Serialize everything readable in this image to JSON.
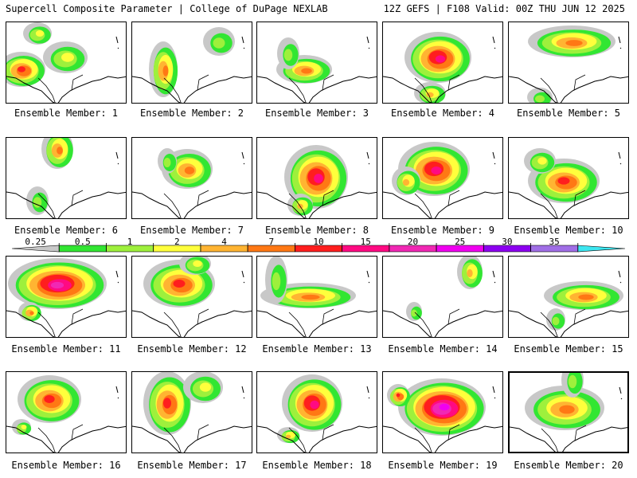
{
  "header": {
    "title_left": "Supercell Composite Parameter | College of DuPage NEXLAB",
    "title_right": "12Z GEFS | F108 Valid: 00Z THU JUN 12 2025"
  },
  "members": [
    {
      "label": "Ensemble Member: 1",
      "max": "7"
    },
    {
      "label": "Ensemble Member: 2",
      "max": "4"
    },
    {
      "label": "Ensemble Member: 3",
      "max": "4"
    },
    {
      "label": "Ensemble Member: 4",
      "max": "10"
    },
    {
      "label": "Ensemble Member: 5",
      "max": "4"
    },
    {
      "label": "Ensemble Member: 6",
      "max": "4"
    },
    {
      "label": "Ensemble Member: 7",
      "max": "4"
    },
    {
      "label": "Ensemble Member: 8",
      "max": "10"
    },
    {
      "label": "Ensemble Member: 9",
      "max": "10"
    },
    {
      "label": "Ensemble Member: 10",
      "max": "7"
    },
    {
      "label": "Ensemble Member: 11",
      "max": "15"
    },
    {
      "label": "Ensemble Member: 12",
      "max": "7"
    },
    {
      "label": "Ensemble Member: 13",
      "max": "4"
    },
    {
      "label": "Ensemble Member: 14",
      "max": "2"
    },
    {
      "label": "Ensemble Member: 15",
      "max": "4"
    },
    {
      "label": "Ensemble Member: 16",
      "max": "7"
    },
    {
      "label": "Ensemble Member: 17",
      "max": "7"
    },
    {
      "label": "Ensemble Member: 18",
      "max": "10"
    },
    {
      "label": "Ensemble Member: 19",
      "max": "20"
    },
    {
      "label": "Ensemble Member: 20",
      "max": "4"
    }
  ],
  "selected_member": "20",
  "legend": {
    "thresholds": [
      "0.25",
      "0.5",
      "1",
      "2",
      "4",
      "7",
      "10",
      "15",
      "20",
      "25",
      "30",
      "35"
    ],
    "colors": [
      "#c8c8c8",
      "#32e632",
      "#9ef03c",
      "#ffff3c",
      "#ffb432",
      "#ff7814",
      "#ff1e1e",
      "#ff0a82",
      "#f028b4",
      "#f000f0",
      "#8c00f0",
      "#a06ee6",
      "#3ce6f0"
    ]
  }
}
